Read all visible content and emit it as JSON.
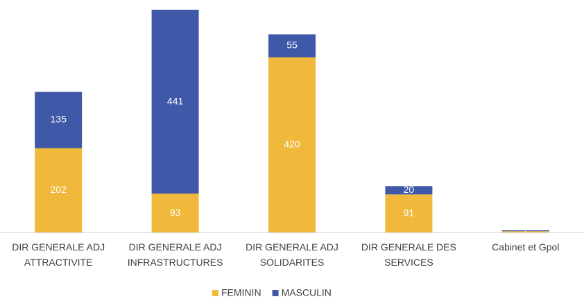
{
  "chart_data": {
    "type": "stacked-bar",
    "categories": [
      "DIR GENERALE ADJ ATTRACTIVITE",
      "DIR GENERALE ADJ INFRASTRUCTURES",
      "DIR GENERALE ADJ SOLIDARITES",
      "DIR GENERALE DES SERVICES",
      "Cabinet et Gpol"
    ],
    "series": [
      {
        "name": "FEMININ",
        "color": "#F0B93B",
        "values": [
          202,
          93,
          420,
          91,
          3
        ]
      },
      {
        "name": "MASCULIN",
        "color": "#3F59A8",
        "values": [
          135,
          441,
          55,
          20,
          2
        ]
      }
    ],
    "legend": "bottom"
  }
}
